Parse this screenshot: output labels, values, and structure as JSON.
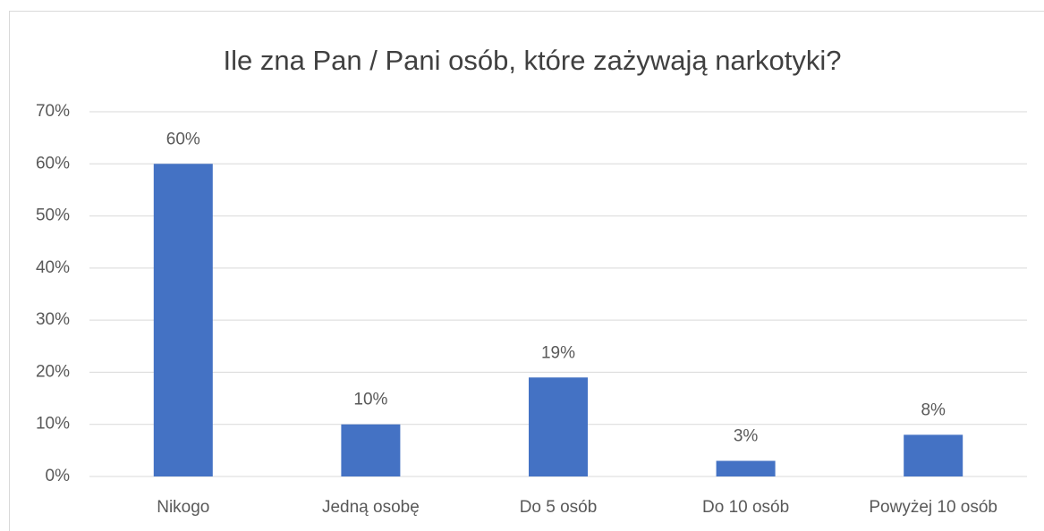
{
  "chart_data": {
    "type": "bar",
    "title": "Ile zna Pan / Pani osób, które zażywają narkotyki?",
    "categories": [
      "Nikogo",
      "Jedną osobę",
      "Do 5 osób",
      "Do 10 osób",
      "Powyżej 10 osób"
    ],
    "values": [
      60,
      10,
      19,
      3,
      8
    ],
    "value_labels": [
      "60%",
      "10%",
      "19%",
      "3%",
      "8%"
    ],
    "color": "#4472c4",
    "ylim": [
      0,
      70
    ],
    "yticks": [
      {
        "value": 0,
        "label": "0%"
      },
      {
        "value": 10,
        "label": "10%"
      },
      {
        "value": 20,
        "label": "20%"
      },
      {
        "value": 30,
        "label": "30%"
      },
      {
        "value": 40,
        "label": "40%"
      },
      {
        "value": 50,
        "label": "50%"
      },
      {
        "value": 60,
        "label": "60%"
      },
      {
        "value": 70,
        "label": "70%"
      }
    ],
    "grid": true
  }
}
